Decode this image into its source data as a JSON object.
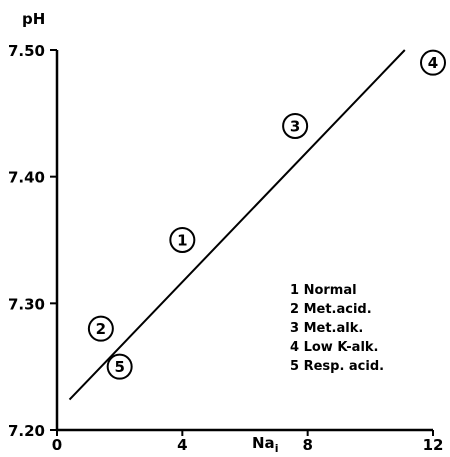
{
  "chart_data": {
    "type": "scatter",
    "title": "",
    "xlabel": "Na",
    "xlabel_subscript": "i",
    "ylabel": "pH",
    "xlim": [
      0,
      12
    ],
    "ylim": [
      7.2,
      7.5
    ],
    "x_ticks": [
      {
        "value": 0,
        "label": "0"
      },
      {
        "value": 4,
        "label": "4"
      },
      {
        "value": 8,
        "label": "8"
      },
      {
        "value": 12,
        "label": "12"
      }
    ],
    "y_ticks": [
      {
        "value": 7.2,
        "label": "7.20"
      },
      {
        "value": 7.3,
        "label": "7.30"
      },
      {
        "value": 7.4,
        "label": "7.40"
      },
      {
        "value": 7.5,
        "label": "7.50"
      }
    ],
    "grid": false,
    "points": [
      {
        "label": "1",
        "x": 4.0,
        "y": 7.35
      },
      {
        "label": "2",
        "x": 1.4,
        "y": 7.28
      },
      {
        "label": "3",
        "x": 7.6,
        "y": 7.44
      },
      {
        "label": "4",
        "x": 12.0,
        "y": 7.49
      },
      {
        "label": "5",
        "x": 2.0,
        "y": 7.25
      }
    ],
    "fit_line": {
      "x": [
        0.4,
        11.1
      ],
      "y": [
        7.224,
        7.5
      ]
    },
    "legend_position": "bottom-right",
    "legend": [
      {
        "number": "1",
        "text": "Normal"
      },
      {
        "number": "2",
        "text": "Met.acid."
      },
      {
        "number": "3",
        "text": "Met.alk."
      },
      {
        "number": "4",
        "text": "Low K-alk."
      },
      {
        "number": "5",
        "text": "Resp. acid."
      }
    ]
  }
}
